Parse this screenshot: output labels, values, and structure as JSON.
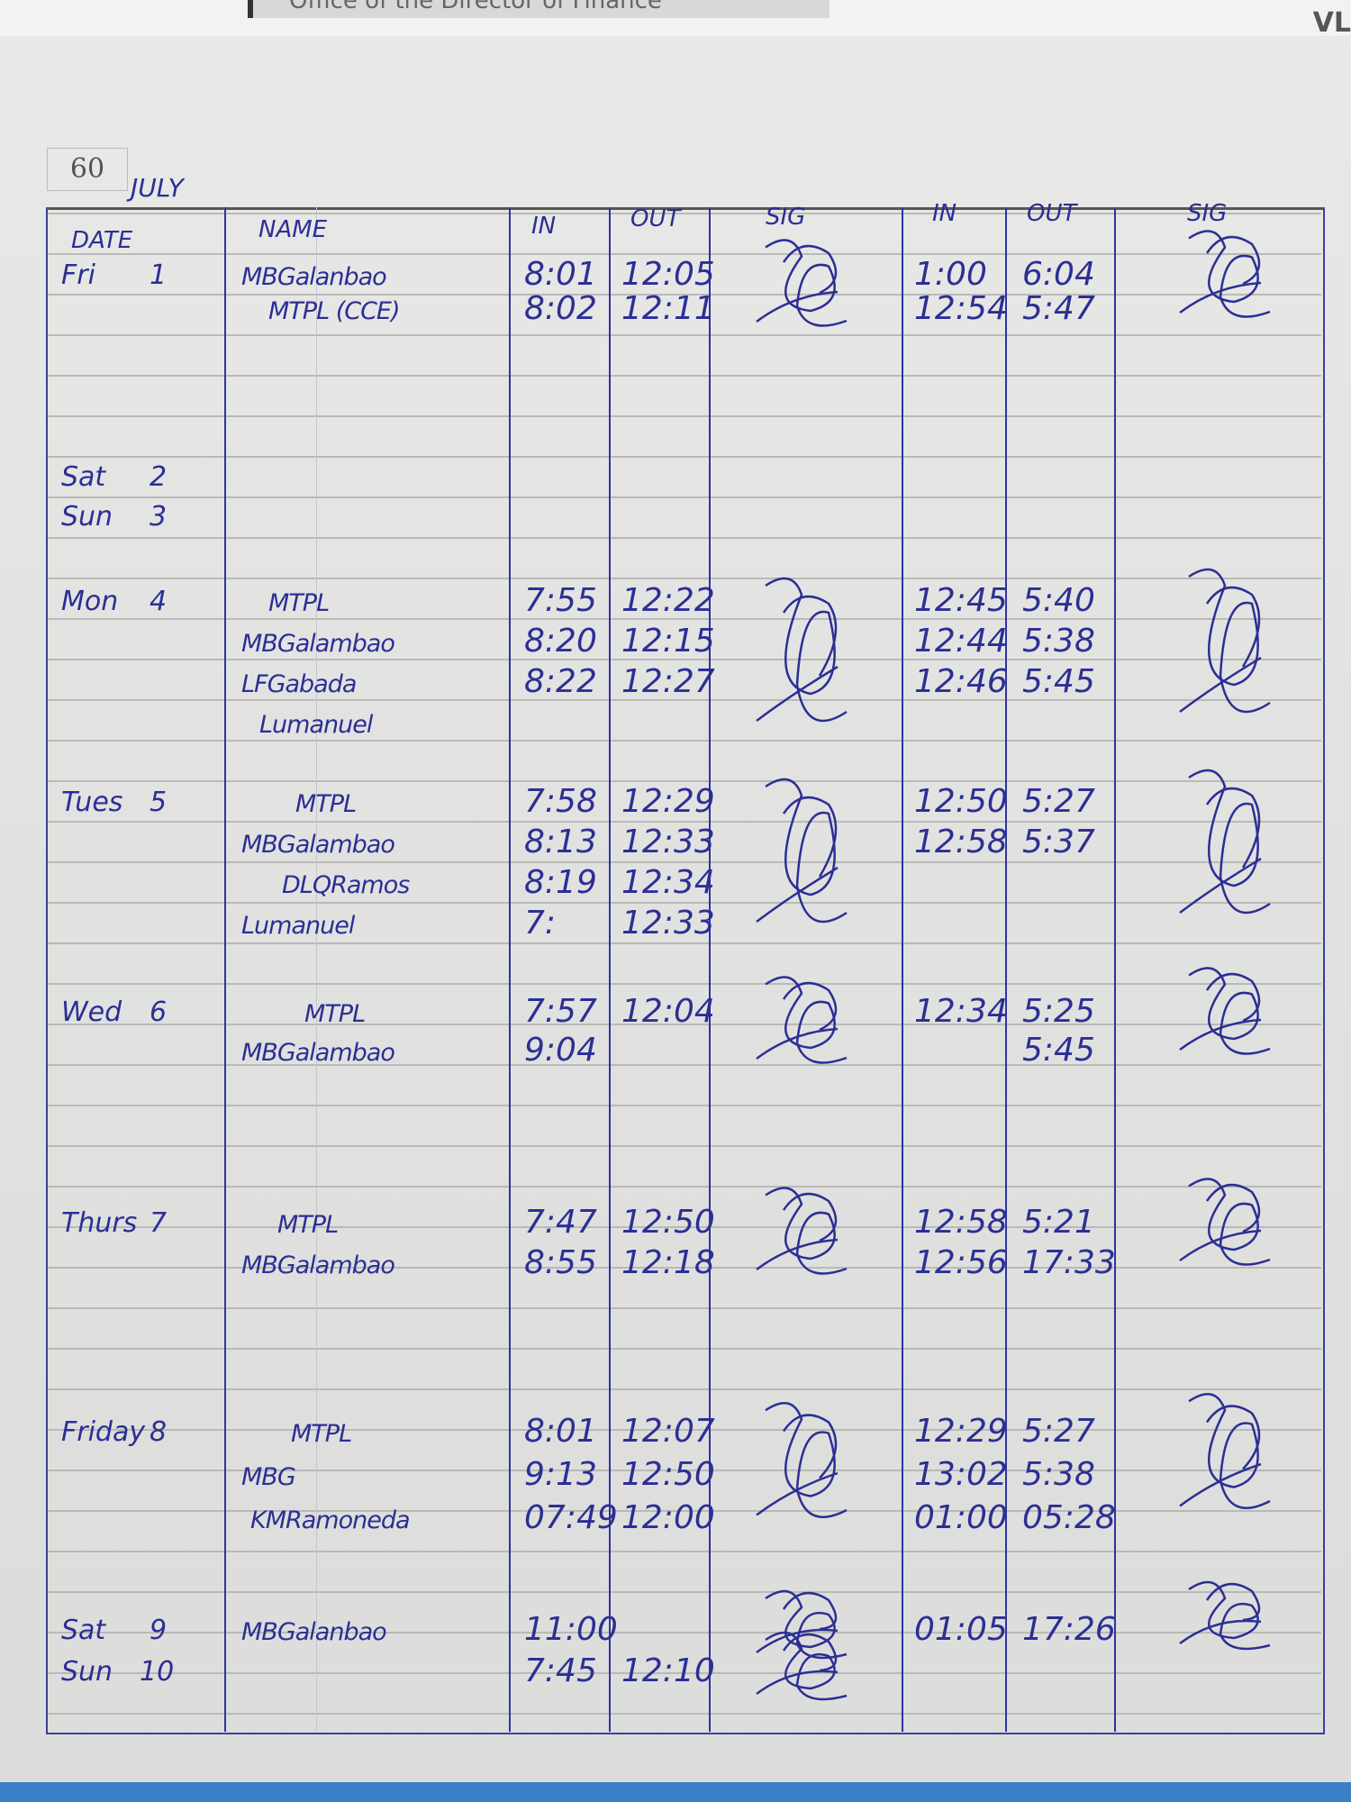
{
  "page": {
    "page_number": "60",
    "month": "JULY",
    "top_cover_text": "Office of the Director of Finance",
    "top_right_text": "VL"
  },
  "headers": {
    "date": "DATE",
    "name": "NAME",
    "in_am": "IN",
    "out_am": "OUT",
    "sig_am": "SIG",
    "in_pm": "IN",
    "out_pm": "OUT",
    "sig_pm": "SIG"
  },
  "colors": {
    "ink": "#2b2f94",
    "paper": "#e4e4e2",
    "rule": "#b9bab8"
  },
  "days": [
    {
      "day": "Fri",
      "num": "1",
      "lines": [
        {
          "name": "MBGalanbao",
          "in_am": "8:01",
          "out_am": "12:05",
          "in_pm": "1:00",
          "out_pm": "6:04"
        },
        {
          "name": "MTPL   (CCE)",
          "in_am": "8:02",
          "out_am": "12:11",
          "in_pm": "12:54",
          "out_pm": "5:47"
        }
      ]
    },
    {
      "day": "Sat",
      "num": "2",
      "lines": []
    },
    {
      "day": "Sun",
      "num": "3",
      "lines": []
    },
    {
      "day": "Mon",
      "num": "4",
      "lines": [
        {
          "name": "MTPL",
          "in_am": "7:55",
          "out_am": "12:22",
          "in_pm": "12:45",
          "out_pm": "5:40"
        },
        {
          "name": "MBGalambao",
          "in_am": "8:20",
          "out_am": "12:15",
          "in_pm": "12:44",
          "out_pm": "5:38"
        },
        {
          "name": "LFGabada",
          "in_am": "8:22",
          "out_am": "12:27",
          "in_pm": "12:46",
          "out_pm": "5:45"
        },
        {
          "name": "Lumanuel",
          "in_am": "",
          "out_am": "",
          "in_pm": "",
          "out_pm": ""
        }
      ]
    },
    {
      "day": "Tues",
      "num": "5",
      "lines": [
        {
          "name": "MTPL",
          "in_am": "7:58",
          "out_am": "12:29",
          "in_pm": "12:50",
          "out_pm": "5:27"
        },
        {
          "name": "MBGalambao",
          "in_am": "8:13",
          "out_am": "12:33",
          "in_pm": "12:58",
          "out_pm": "5:37"
        },
        {
          "name": "DLQRamos",
          "in_am": "8:19",
          "out_am": "12:34",
          "in_pm": "",
          "out_pm": ""
        },
        {
          "name": "Lumanuel",
          "in_am": "7:",
          "out_am": "12:33",
          "in_pm": "",
          "out_pm": ""
        }
      ]
    },
    {
      "day": "Wed",
      "num": "6",
      "lines": [
        {
          "name": "MTPL",
          "in_am": "7:57",
          "out_am": "12:04",
          "in_pm": "12:34",
          "out_pm": "5:25"
        },
        {
          "name": "MBGalambao",
          "in_am": "9:04",
          "out_am": "",
          "in_pm": "",
          "out_pm": "5:45"
        }
      ]
    },
    {
      "day": "Thurs",
      "num": "7",
      "lines": [
        {
          "name": "MTPL",
          "in_am": "7:47",
          "out_am": "12:50",
          "in_pm": "12:58",
          "out_pm": "5:21"
        },
        {
          "name": "MBGalambao",
          "in_am": "8:55",
          "out_am": "12:18",
          "in_pm": "12:56",
          "out_pm": "17:33"
        }
      ]
    },
    {
      "day": "Friday",
      "num": "8",
      "lines": [
        {
          "name": "MTPL",
          "in_am": "8:01",
          "out_am": "12:07",
          "in_pm": "12:29",
          "out_pm": "5:27"
        },
        {
          "name": "MBG",
          "in_am": "9:13",
          "out_am": "12:50",
          "in_pm": "13:02",
          "out_pm": "5:38"
        },
        {
          "name": "KMRamoneda",
          "in_am": "07:49",
          "out_am": "12:00",
          "in_pm": "01:00",
          "out_pm": "05:28"
        }
      ]
    },
    {
      "day": "Sat",
      "num": "9",
      "lines": [
        {
          "name": "MBGalanbao",
          "in_am": "11:00",
          "out_am": "",
          "in_pm": "01:05",
          "out_pm": "17:26"
        }
      ]
    },
    {
      "day": "Sun",
      "num": "10",
      "lines": [
        {
          "name": "",
          "in_am": "7:45",
          "out_am": "12:10",
          "in_pm": "",
          "out_pm": ""
        }
      ]
    }
  ]
}
